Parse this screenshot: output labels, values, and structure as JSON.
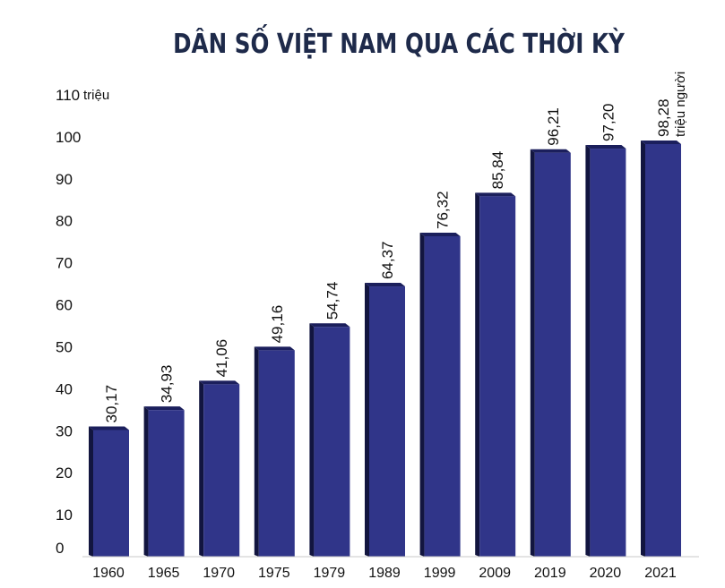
{
  "chart_data": {
    "type": "bar",
    "title": "DÂN SỐ VIỆT NAM QUA CÁC THỜI KỲ",
    "y_unit_label": "triệu",
    "value_unit_label": "triệu người",
    "categories": [
      "1960",
      "1965",
      "1970",
      "1975",
      "1979",
      "1989",
      "1999",
      "2009",
      "2019",
      "2020",
      "2021"
    ],
    "values": [
      30.17,
      34.93,
      41.06,
      49.16,
      54.74,
      64.37,
      76.32,
      85.84,
      96.21,
      97.2,
      98.28
    ],
    "value_labels": [
      "30,17",
      "34,93",
      "41,06",
      "49,16",
      "54,74",
      "64,37",
      "76,32",
      "85,84",
      "96,21",
      "97,20",
      "98,28"
    ],
    "yticks": [
      "0",
      "10",
      "20",
      "30",
      "40",
      "50",
      "60",
      "70",
      "80",
      "90",
      "100",
      "110"
    ],
    "ylim": [
      0,
      110
    ],
    "grid": false,
    "colors": {
      "bar_front": "#303589",
      "bar_top": "#1b1f5c",
      "bar_side": "#12153f",
      "text": "#111111",
      "title": "#1e2a4a"
    }
  }
}
